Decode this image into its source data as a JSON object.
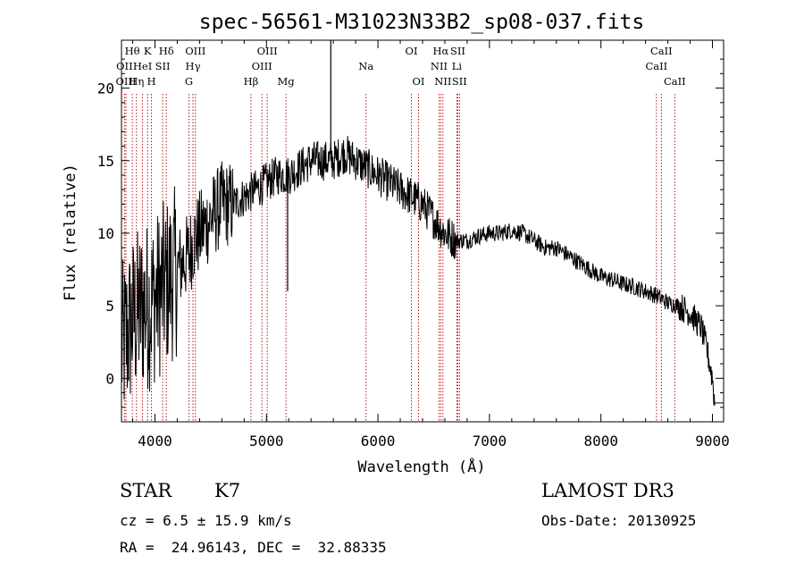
{
  "chart_data": {
    "type": "line",
    "title": "spec-56561-M31023N33B2_sp08-037.fits",
    "xlabel": "Wavelength (Å)",
    "ylabel": "Flux (relative)",
    "xlim": [
      3700,
      9100
    ],
    "ylim": [
      -3,
      23.3
    ],
    "xticks": [
      4000,
      5000,
      6000,
      7000,
      8000,
      9000
    ],
    "yticks": [
      0,
      5,
      10,
      15,
      20
    ],
    "series": [
      {
        "name": "spectrum",
        "x": [
          3700,
          3750,
          3800,
          3850,
          3900,
          3950,
          4000,
          4050,
          4100,
          4150,
          4200,
          4250,
          4300,
          4350,
          4400,
          4450,
          4500,
          4600,
          4700,
          4800,
          4900,
          5000,
          5100,
          5200,
          5300,
          5400,
          5500,
          5600,
          5700,
          5800,
          5900,
          6000,
          6100,
          6200,
          6300,
          6400,
          6500,
          6600,
          6700,
          6800,
          6900,
          7000,
          7100,
          7200,
          7300,
          7400,
          7500,
          7600,
          7700,
          7800,
          7900,
          8000,
          8100,
          8200,
          8300,
          8400,
          8500,
          8600,
          8700,
          8800,
          8900,
          8950,
          9000,
          9020
        ],
        "y": [
          2,
          3,
          4,
          4.5,
          5,
          5,
          5.5,
          6,
          6.5,
          7,
          7.5,
          8,
          8.5,
          9.5,
          10,
          10.5,
          11,
          12,
          12,
          12.5,
          13,
          13.5,
          14,
          14,
          14.5,
          15,
          15,
          15,
          15.5,
          15,
          14.5,
          14,
          13.5,
          13,
          12.5,
          12,
          11,
          10,
          9.5,
          9.5,
          9.8,
          10,
          10,
          10.2,
          10,
          9.5,
          9,
          9,
          8.5,
          8,
          7.5,
          7,
          6.8,
          6.5,
          6.3,
          6,
          5.7,
          5.2,
          5,
          4.5,
          3.5,
          2,
          0,
          -1.7
        ]
      }
    ],
    "spikes": [
      {
        "x": 5577,
        "y": 23.3
      },
      {
        "x": 5190,
        "y": 6
      }
    ],
    "line_markers": [
      {
        "label": "Hθ",
        "x": 3797,
        "row": 1
      },
      {
        "label": "OII",
        "x": 3727,
        "row": 2
      },
      {
        "label": "OIII",
        "x": 3740,
        "row": 3
      },
      {
        "label": "Hη",
        "x": 3835,
        "row": 3
      },
      {
        "label": "HeI",
        "x": 3889,
        "row": 2
      },
      {
        "label": "K",
        "x": 3934,
        "row": 1
      },
      {
        "label": "SII",
        "x": 4069,
        "row": 2
      },
      {
        "label": "H",
        "x": 3969,
        "row": 3
      },
      {
        "label": "Hδ",
        "x": 4102,
        "row": 1
      },
      {
        "label": "OIII",
        "x": 4363,
        "row": 1
      },
      {
        "label": "Hγ",
        "x": 4341,
        "row": 2
      },
      {
        "label": "G",
        "x": 4305,
        "row": 3
      },
      {
        "label": "OIII",
        "x": 5007,
        "row": 1
      },
      {
        "label": "OIII",
        "x": 4959,
        "row": 2
      },
      {
        "label": "Hβ",
        "x": 4861,
        "row": 3
      },
      {
        "label": "Mg",
        "x": 5175,
        "row": 3
      },
      {
        "label": "Na",
        "x": 5893,
        "row": 2
      },
      {
        "label": "OI",
        "x": 6300,
        "row": 1
      },
      {
        "label": "OI",
        "x": 6364,
        "row": 3
      },
      {
        "label": "Hα",
        "x": 6563,
        "row": 1
      },
      {
        "label": "NII",
        "x": 6548,
        "row": 2
      },
      {
        "label": "NII",
        "x": 6583,
        "row": 3
      },
      {
        "label": "SII",
        "x": 6716,
        "row": 1
      },
      {
        "label": "Li",
        "x": 6708,
        "row": 2
      },
      {
        "label": "SII",
        "x": 6731,
        "row": 3
      },
      {
        "label": "CaII",
        "x": 8542,
        "row": 1
      },
      {
        "label": "CaII",
        "x": 8498,
        "row": 2
      },
      {
        "label": "CaII",
        "x": 8662,
        "row": 3
      }
    ]
  },
  "info": {
    "class_label": "STAR",
    "subclass": "K7",
    "survey": "LAMOST DR3",
    "redshift": "cz = 6.5 ± 15.9 km/s",
    "obs_date": "Obs-Date: 20130925",
    "coords": "RA =  24.96143, DEC =  32.88335"
  }
}
